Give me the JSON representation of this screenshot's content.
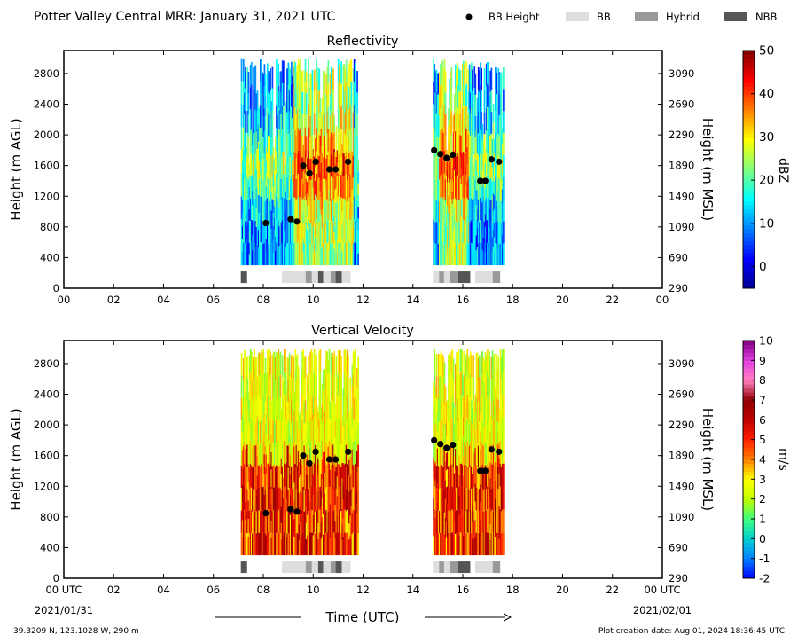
{
  "figure": {
    "title": "Potter Valley Central MRR:  January 31, 2021 UTC",
    "footer_left": "39.3209 N, 123.1028 W, 290 m",
    "footer_right": "Plot creation date: Aug 01, 2024 18:36:45 UTC",
    "time_axis_label": "Time (UTC)",
    "start_date": "2021/01/31",
    "end_date": "2021/02/01"
  },
  "legend": [
    {
      "label": "BB Height",
      "kind": "dot",
      "color": "#000000"
    },
    {
      "label": "BB",
      "kind": "box",
      "color": "#dddddd"
    },
    {
      "label": "Hybrid",
      "kind": "box",
      "color": "#999999"
    },
    {
      "label": "NBB",
      "kind": "box",
      "color": "#555555"
    }
  ],
  "colors": {
    "frame": "#000000",
    "bb": "#dddddd",
    "hybrid": "#999999",
    "nbb": "#555555",
    "bb_height": "#000000"
  },
  "chart_data": [
    {
      "type": "heatmap",
      "title": "Reflectivity",
      "ylabel": "Height (m AGL)",
      "y2label": "Height (m MSL)",
      "colorbar_label": "dBZ",
      "xlim": [
        0,
        24
      ],
      "ylim": [
        0,
        3100
      ],
      "xticks": [
        "00",
        "02",
        "04",
        "06",
        "08",
        "10",
        "12",
        "14",
        "16",
        "18",
        "20",
        "22",
        "00"
      ],
      "yticks": [
        0,
        400,
        800,
        1200,
        1600,
        2000,
        2400,
        2800
      ],
      "y2ticks": [
        290,
        690,
        1090,
        1490,
        1890,
        2290,
        2690,
        3090
      ],
      "colorbar": {
        "min": -5,
        "max": 50,
        "ticks": [
          0,
          10,
          20,
          30,
          40,
          50
        ],
        "stops": [
          "#00008f",
          "#0000ff",
          "#0080ff",
          "#00ffff",
          "#80ff80",
          "#ffff00",
          "#ff8000",
          "#ff0000",
          "#800000"
        ]
      },
      "echo_regions": [
        {
          "x": [
            7.1,
            11.8
          ],
          "y": [
            300,
            3000
          ]
        },
        {
          "x": [
            14.8,
            17.6
          ],
          "y": [
            300,
            3000
          ]
        }
      ],
      "bb_height": [
        {
          "x": 8.1,
          "y": 850
        },
        {
          "x": 9.1,
          "y": 900
        },
        {
          "x": 9.35,
          "y": 870
        },
        {
          "x": 9.6,
          "y": 1600
        },
        {
          "x": 9.85,
          "y": 1500
        },
        {
          "x": 10.1,
          "y": 1650
        },
        {
          "x": 10.65,
          "y": 1550
        },
        {
          "x": 10.9,
          "y": 1550
        },
        {
          "x": 11.4,
          "y": 1650
        },
        {
          "x": 14.85,
          "y": 1800
        },
        {
          "x": 15.1,
          "y": 1750
        },
        {
          "x": 15.35,
          "y": 1700
        },
        {
          "x": 15.6,
          "y": 1740
        },
        {
          "x": 16.7,
          "y": 1400
        },
        {
          "x": 16.9,
          "y": 1400
        },
        {
          "x": 17.15,
          "y": 1680
        },
        {
          "x": 17.45,
          "y": 1650
        }
      ],
      "bb_type_bar": [
        {
          "x": [
            7.1,
            7.35
          ],
          "type": "nbb"
        },
        {
          "x": [
            8.75,
            9.7
          ],
          "type": "bb"
        },
        {
          "x": [
            9.7,
            9.95
          ],
          "type": "hybrid"
        },
        {
          "x": [
            9.95,
            10.2
          ],
          "type": "bb"
        },
        {
          "x": [
            10.2,
            10.4
          ],
          "type": "nbb"
        },
        {
          "x": [
            10.4,
            10.7
          ],
          "type": "bb"
        },
        {
          "x": [
            10.7,
            10.9
          ],
          "type": "hybrid"
        },
        {
          "x": [
            10.9,
            11.15
          ],
          "type": "nbb"
        },
        {
          "x": [
            11.15,
            11.5
          ],
          "type": "bb"
        },
        {
          "x": [
            14.8,
            15.05
          ],
          "type": "bb"
        },
        {
          "x": [
            15.05,
            15.25
          ],
          "type": "hybrid"
        },
        {
          "x": [
            15.25,
            15.5
          ],
          "type": "bb"
        },
        {
          "x": [
            15.5,
            15.8
          ],
          "type": "hybrid"
        },
        {
          "x": [
            15.8,
            16.3
          ],
          "type": "nbb"
        },
        {
          "x": [
            16.5,
            17.2
          ],
          "type": "bb"
        },
        {
          "x": [
            17.2,
            17.5
          ],
          "type": "hybrid"
        }
      ]
    },
    {
      "type": "heatmap",
      "title": "Vertical Velocity",
      "ylabel": "Height (m AGL)",
      "y2label": "Height (m MSL)",
      "colorbar_label": "m/s",
      "xlim": [
        0,
        24
      ],
      "ylim": [
        0,
        3100
      ],
      "xticks": [
        "00 UTC",
        "02",
        "04",
        "06",
        "08",
        "10",
        "12",
        "14",
        "16",
        "18",
        "20",
        "22",
        "00 UTC"
      ],
      "yticks": [
        0,
        400,
        800,
        1200,
        1600,
        2000,
        2400,
        2800
      ],
      "y2ticks": [
        290,
        690,
        1090,
        1490,
        1890,
        2290,
        2690,
        3090
      ],
      "colorbar": {
        "min": -2,
        "max": 10,
        "ticks": [
          -2,
          -1,
          0,
          1,
          2,
          3,
          4,
          5,
          6,
          7,
          8,
          9,
          10
        ],
        "stops": [
          "#0000ff",
          "#0080ff",
          "#00d0d0",
          "#40ff80",
          "#c0ff00",
          "#ffff00",
          "#ff8000",
          "#ff2000",
          "#c00000",
          "#900000",
          "#ff80c0",
          "#e040e0",
          "#800080"
        ]
      },
      "echo_regions": [
        {
          "x": [
            7.1,
            11.8
          ],
          "y": [
            300,
            3000
          ]
        },
        {
          "x": [
            14.8,
            17.6
          ],
          "y": [
            300,
            3000
          ]
        }
      ],
      "bb_height": [
        {
          "x": 8.1,
          "y": 850
        },
        {
          "x": 9.1,
          "y": 900
        },
        {
          "x": 9.35,
          "y": 870
        },
        {
          "x": 9.6,
          "y": 1600
        },
        {
          "x": 9.85,
          "y": 1500
        },
        {
          "x": 10.1,
          "y": 1650
        },
        {
          "x": 10.65,
          "y": 1550
        },
        {
          "x": 10.9,
          "y": 1550
        },
        {
          "x": 11.4,
          "y": 1650
        },
        {
          "x": 14.85,
          "y": 1800
        },
        {
          "x": 15.1,
          "y": 1750
        },
        {
          "x": 15.35,
          "y": 1700
        },
        {
          "x": 15.6,
          "y": 1740
        },
        {
          "x": 16.7,
          "y": 1400
        },
        {
          "x": 16.9,
          "y": 1400
        },
        {
          "x": 17.15,
          "y": 1680
        },
        {
          "x": 17.45,
          "y": 1650
        }
      ],
      "bb_type_bar": [
        {
          "x": [
            7.1,
            7.35
          ],
          "type": "nbb"
        },
        {
          "x": [
            8.75,
            9.7
          ],
          "type": "bb"
        },
        {
          "x": [
            9.7,
            9.95
          ],
          "type": "hybrid"
        },
        {
          "x": [
            9.95,
            10.2
          ],
          "type": "bb"
        },
        {
          "x": [
            10.2,
            10.4
          ],
          "type": "nbb"
        },
        {
          "x": [
            10.4,
            10.7
          ],
          "type": "bb"
        },
        {
          "x": [
            10.7,
            10.9
          ],
          "type": "hybrid"
        },
        {
          "x": [
            10.9,
            11.15
          ],
          "type": "nbb"
        },
        {
          "x": [
            11.15,
            11.5
          ],
          "type": "bb"
        },
        {
          "x": [
            14.8,
            15.05
          ],
          "type": "bb"
        },
        {
          "x": [
            15.05,
            15.25
          ],
          "type": "hybrid"
        },
        {
          "x": [
            15.25,
            15.5
          ],
          "type": "bb"
        },
        {
          "x": [
            15.5,
            15.8
          ],
          "type": "hybrid"
        },
        {
          "x": [
            15.8,
            16.3
          ],
          "type": "nbb"
        },
        {
          "x": [
            16.5,
            17.2
          ],
          "type": "bb"
        },
        {
          "x": [
            17.2,
            17.5
          ],
          "type": "hybrid"
        }
      ]
    }
  ]
}
